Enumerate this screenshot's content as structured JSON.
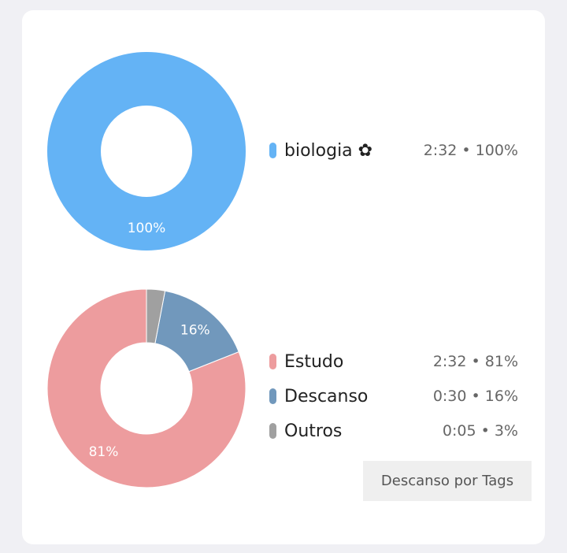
{
  "chart_data": [
    {
      "type": "pie",
      "categories": [
        "biologia ✿"
      ],
      "values": [
        100
      ],
      "colors": [
        "#64b3f5"
      ],
      "labels": [
        "100%"
      ]
    },
    {
      "type": "pie",
      "categories": [
        "Estudo",
        "Descanso",
        "Outros"
      ],
      "values": [
        81,
        16,
        3
      ],
      "colors": [
        "#ed9c9e",
        "#7198bc",
        "#a0a0a0"
      ],
      "labels": [
        "81%",
        "16%",
        ""
      ]
    }
  ],
  "legend_top": [
    {
      "label": "biologia ✿",
      "value": "2:32 • 100%",
      "color": "#64b3f5"
    }
  ],
  "legend_bottom": [
    {
      "label": "Estudo",
      "value": "2:32 • 81%",
      "color": "#ed9c9e"
    },
    {
      "label": "Descanso",
      "value": "0:30 • 16%",
      "color": "#7198bc"
    },
    {
      "label": "Outros",
      "value": "0:05 • 3%",
      "color": "#a0a0a0"
    }
  ],
  "button": {
    "label": "Descanso por Tags"
  }
}
